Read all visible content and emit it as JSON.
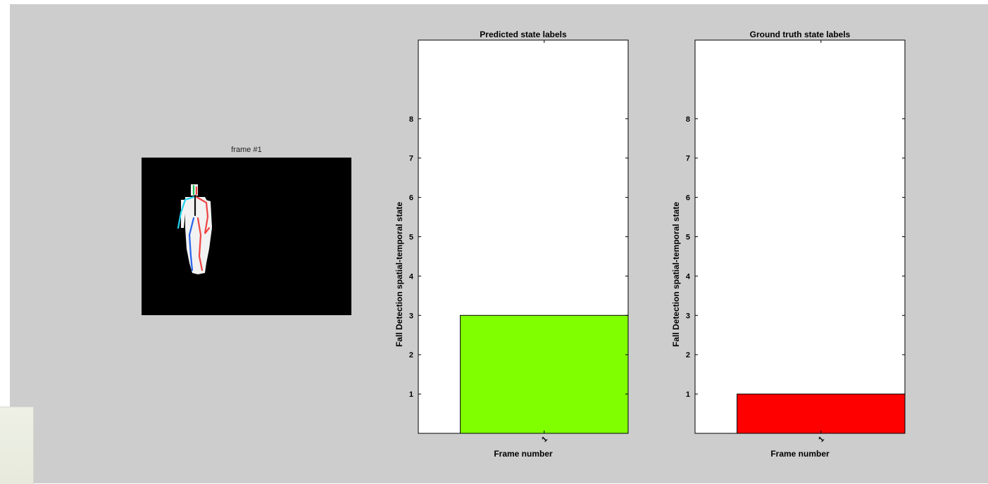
{
  "frame": {
    "title": "frame #1"
  },
  "charts": [
    {
      "id": "predicted",
      "title": "Predicted state labels",
      "xlabel": "Frame number",
      "ylabel": "Fall Detection spatial-temporal state",
      "bar_color": "#80ff00"
    },
    {
      "id": "ground-truth",
      "title": "Ground truth state labels",
      "xlabel": "Frame number",
      "ylabel": "Fall Detection spatial-temporal state",
      "bar_color": "#ff0000"
    }
  ],
  "chart_data": [
    {
      "type": "bar",
      "title": "Predicted state labels",
      "xlabel": "Frame number",
      "ylabel": "Fall Detection spatial-temporal state",
      "categories": [
        "1"
      ],
      "values": [
        3
      ],
      "ylim": [
        0,
        10
      ],
      "yticks": [
        1,
        2,
        3,
        4,
        5,
        6,
        7,
        8
      ],
      "grid": false
    },
    {
      "type": "bar",
      "title": "Ground truth state labels",
      "xlabel": "Frame number",
      "ylabel": "Fall Detection spatial-temporal state",
      "categories": [
        "1"
      ],
      "values": [
        1
      ],
      "ylim": [
        0,
        10
      ],
      "yticks": [
        1,
        2,
        3,
        4,
        5,
        6,
        7,
        8
      ],
      "grid": false
    }
  ]
}
